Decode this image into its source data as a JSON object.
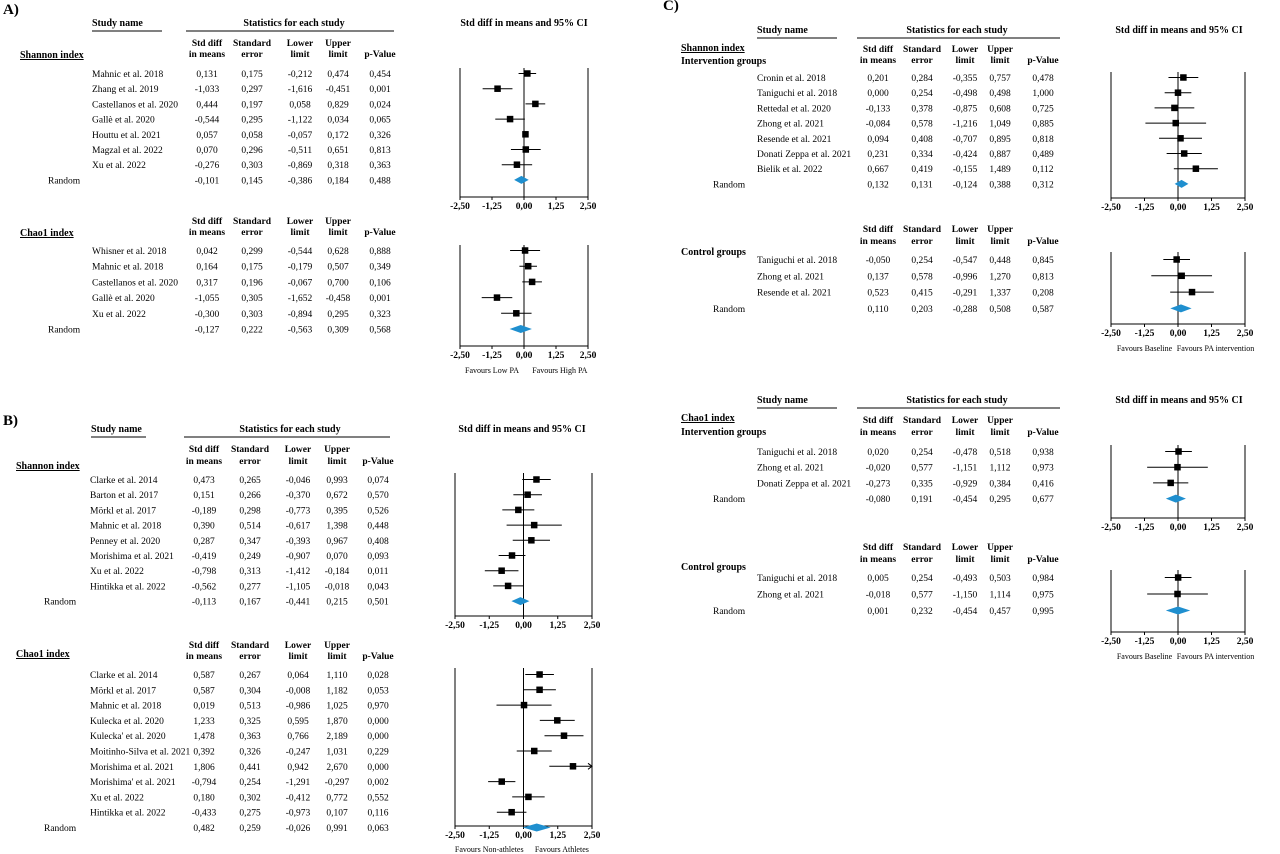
{
  "panels": [
    {
      "label": "A)",
      "headers": {
        "study": "Study name",
        "stats": "Statistics for each study",
        "ci": "Std diff in means and 95% CI",
        "cols": [
          [
            "Std diff",
            "in means"
          ],
          [
            "Standard",
            "error"
          ],
          [
            "Lower",
            "limit"
          ],
          [
            "Upper",
            "limit"
          ],
          [
            "p-Value"
          ]
        ]
      },
      "axis_ticks": [
        "-2,50",
        "-1,25",
        "0,00",
        "1,25",
        "2,50"
      ],
      "sections": [
        {
          "title": "Shannon index",
          "rows": [
            {
              "study": "Mahnic et al. 2018",
              "std": "0,131",
              "se": "0,175",
              "lower": "-0,212",
              "upper": "0,474",
              "p": "0,454"
            },
            {
              "study": "Zhang et al. 2019",
              "std": "-1,033",
              "se": "0,297",
              "lower": "-1,616",
              "upper": "-0,451",
              "p": "0,001"
            },
            {
              "study": "Castellanos et al. 2020",
              "std": "0,444",
              "se": "0,197",
              "lower": "0,058",
              "upper": "0,829",
              "p": "0,024"
            },
            {
              "study": "Gallè et al. 2020",
              "std": "-0,544",
              "se": "0,295",
              "lower": "-1,122",
              "upper": "0,034",
              "p": "0,065"
            },
            {
              "study": "Houttu et al. 2021",
              "std": "0,057",
              "se": "0,058",
              "lower": "-0,057",
              "upper": "0,172",
              "p": "0,326"
            },
            {
              "study": "Magzal et al. 2022",
              "std": "0,070",
              "se": "0,296",
              "lower": "-0,511",
              "upper": "0,651",
              "p": "0,813"
            },
            {
              "study": "Xu et al. 2022",
              "std": "-0,276",
              "se": "0,303",
              "lower": "-0,869",
              "upper": "0,318",
              "p": "0,363"
            }
          ],
          "random": {
            "study": "Random",
            "std": "-0,101",
            "se": "0,145",
            "lower": "-0,386",
            "upper": "0,184",
            "p": "0,488"
          }
        },
        {
          "title": "Chao1 index",
          "rows": [
            {
              "study": "Whisner et al. 2018",
              "std": "0,042",
              "se": "0,299",
              "lower": "-0,544",
              "upper": "0,628",
              "p": "0,888"
            },
            {
              "study": "Mahnic et al. 2018",
              "std": "0,164",
              "se": "0,175",
              "lower": "-0,179",
              "upper": "0,507",
              "p": "0,349"
            },
            {
              "study": "Castellanos et al. 2020",
              "std": "0,317",
              "se": "0,196",
              "lower": "-0,067",
              "upper": "0,700",
              "p": "0,106"
            },
            {
              "study": "Gallè et al. 2020",
              "std": "-1,055",
              "se": "0,305",
              "lower": "-1,652",
              "upper": "-0,458",
              "p": "0,001"
            },
            {
              "study": "Xu et al. 2022",
              "std": "-0,300",
              "se": "0,303",
              "lower": "-0,894",
              "upper": "0,295",
              "p": "0,323"
            }
          ],
          "random": {
            "study": "Random",
            "std": "-0,127",
            "se": "0,222",
            "lower": "-0,563",
            "upper": "0,309",
            "p": "0,568"
          },
          "favours": [
            "Favours Low PA",
            "Favours High PA"
          ]
        }
      ]
    },
    {
      "label": "B)",
      "headers": {
        "study": "Study name",
        "stats": "Statistics for each study",
        "ci": "Std diff in means and 95% CI",
        "cols": [
          [
            "Std diff",
            "in means"
          ],
          [
            "Standard",
            "error"
          ],
          [
            "Lower",
            "limit"
          ],
          [
            "Upper",
            "limit"
          ],
          [
            "p-Value"
          ]
        ]
      },
      "axis_ticks": [
        "-2,50",
        "-1,25",
        "0,00",
        "1,25",
        "2,50"
      ],
      "sections": [
        {
          "title": "Shannon index",
          "rows": [
            {
              "study": "Clarke et al. 2014",
              "std": "0,473",
              "se": "0,265",
              "lower": "-0,046",
              "upper": "0,993",
              "p": "0,074"
            },
            {
              "study": "Barton et al. 2017",
              "std": "0,151",
              "se": "0,266",
              "lower": "-0,370",
              "upper": "0,672",
              "p": "0,570"
            },
            {
              "study": "Mörkl et al. 2017",
              "std": "-0,189",
              "se": "0,298",
              "lower": "-0,773",
              "upper": "0,395",
              "p": "0,526"
            },
            {
              "study": "Mahnic et al. 2018",
              "std": "0,390",
              "se": "0,514",
              "lower": "-0,617",
              "upper": "1,398",
              "p": "0,448"
            },
            {
              "study": "Penney et al. 2020",
              "std": "0,287",
              "se": "0,347",
              "lower": "-0,393",
              "upper": "0,967",
              "p": "0,408"
            },
            {
              "study": "Morishima et al. 2021",
              "std": "-0,419",
              "se": "0,249",
              "lower": "-0,907",
              "upper": "0,070",
              "p": "0,093"
            },
            {
              "study": "Xu et al. 2022",
              "std": "-0,798",
              "se": "0,313",
              "lower": "-1,412",
              "upper": "-0,184",
              "p": "0,011"
            },
            {
              "study": "Hintikka et al. 2022",
              "std": "-0,562",
              "se": "0,277",
              "lower": "-1,105",
              "upper": "-0,018",
              "p": "0,043"
            }
          ],
          "random": {
            "study": "Random",
            "std": "-0,113",
            "se": "0,167",
            "lower": "-0,441",
            "upper": "0,215",
            "p": "0,501"
          }
        },
        {
          "title": "Chao1 index",
          "rows": [
            {
              "study": "Clarke et al. 2014",
              "std": "0,587",
              "se": "0,267",
              "lower": "0,064",
              "upper": "1,110",
              "p": "0,028"
            },
            {
              "study": "Mörkl et al. 2017",
              "std": "0,587",
              "se": "0,304",
              "lower": "-0,008",
              "upper": "1,182",
              "p": "0,053"
            },
            {
              "study": "Mahnic et al. 2018",
              "std": "0,019",
              "se": "0,513",
              "lower": "-0,986",
              "upper": "1,025",
              "p": "0,970"
            },
            {
              "study": "Kulecka et al. 2020",
              "std": "1,233",
              "se": "0,325",
              "lower": "0,595",
              "upper": "1,870",
              "p": "0,000"
            },
            {
              "study": "Kulecka' et al. 2020",
              "std": "1,478",
              "se": "0,363",
              "lower": "0,766",
              "upper": "2,189",
              "p": "0,000"
            },
            {
              "study": "Moitinho-Silva et al. 2021",
              "std": "0,392",
              "se": "0,326",
              "lower": "-0,247",
              "upper": "1,031",
              "p": "0,229"
            },
            {
              "study": "Morishima et al. 2021",
              "std": "1,806",
              "se": "0,441",
              "lower": "0,942",
              "upper": "2,670",
              "p": "0,000"
            },
            {
              "study": "Morishima' et al. 2021",
              "std": "-0,794",
              "se": "0,254",
              "lower": "-1,291",
              "upper": "-0,297",
              "p": "0,002"
            },
            {
              "study": "Xu et al. 2022",
              "std": "0,180",
              "se": "0,302",
              "lower": "-0,412",
              "upper": "0,772",
              "p": "0,552"
            },
            {
              "study": "Hintikka et al. 2022",
              "std": "-0,433",
              "se": "0,275",
              "lower": "-0,973",
              "upper": "0,107",
              "p": "0,116"
            }
          ],
          "random": {
            "study": "Random",
            "std": "0,482",
            "se": "0,259",
            "lower": "-0,026",
            "upper": "0,991",
            "p": "0,063"
          },
          "favours": [
            "Favours Non-athletes",
            "Favours Athletes"
          ]
        }
      ]
    },
    {
      "label": "C)",
      "headers": {
        "study": "Study name",
        "stats": "Statistics for each study",
        "ci": "Std diff in means and 95% CI",
        "cols": [
          [
            "Std diff",
            "in means"
          ],
          [
            "Standard",
            "error"
          ],
          [
            "Lower",
            "limit"
          ],
          [
            "Upper",
            "limit"
          ],
          [
            "p-Value"
          ]
        ]
      },
      "axis_ticks": [
        "-2,50",
        "-1,25",
        "0,00",
        "1,25",
        "2,50"
      ],
      "sections": [
        {
          "title": "Shannon index",
          "subtitle": "Intervention groups",
          "rows": [
            {
              "study": "Cronin et al. 2018",
              "std": "0,201",
              "se": "0,284",
              "lower": "-0,355",
              "upper": "0,757",
              "p": "0,478"
            },
            {
              "study": "Taniguchi et al. 2018",
              "std": "0,000",
              "se": "0,254",
              "lower": "-0,498",
              "upper": "0,498",
              "p": "1,000"
            },
            {
              "study": "Rettedal et al. 2020",
              "std": "-0,133",
              "se": "0,378",
              "lower": "-0,875",
              "upper": "0,608",
              "p": "0,725"
            },
            {
              "study": "Zhong et al. 2021",
              "std": "-0,084",
              "se": "0,578",
              "lower": "-1,216",
              "upper": "1,049",
              "p": "0,885"
            },
            {
              "study": "Resende et al. 2021",
              "std": "0,094",
              "se": "0,408",
              "lower": "-0,707",
              "upper": "0,895",
              "p": "0,818"
            },
            {
              "study": "Donati Zeppa et al. 2021",
              "std": "0,231",
              "se": "0,334",
              "lower": "-0,424",
              "upper": "0,887",
              "p": "0,489"
            },
            {
              "study": "Bielik et al. 2022",
              "std": "0,667",
              "se": "0,419",
              "lower": "-0,155",
              "upper": "1,489",
              "p": "0,112"
            }
          ],
          "random": {
            "study": "Random",
            "std": "0,132",
            "se": "0,131",
            "lower": "-0,124",
            "upper": "0,388",
            "p": "0,312"
          }
        },
        {
          "title": "",
          "subtitle": "Control groups",
          "rows": [
            {
              "study": "Taniguchi et al. 2018",
              "std": "-0,050",
              "se": "0,254",
              "lower": "-0,547",
              "upper": "0,448",
              "p": "0,845"
            },
            {
              "study": "Zhong et al. 2021",
              "std": "0,137",
              "se": "0,578",
              "lower": "-0,996",
              "upper": "1,270",
              "p": "0,813"
            },
            {
              "study": "Resende et al. 2021",
              "std": "0,523",
              "se": "0,415",
              "lower": "-0,291",
              "upper": "1,337",
              "p": "0,208"
            }
          ],
          "random": {
            "study": "Random",
            "std": "0,110",
            "se": "0,203",
            "lower": "-0,288",
            "upper": "0,508",
            "p": "0,587"
          },
          "favours": [
            "Favours Baseline",
            "Favours PA intervention"
          ]
        },
        {
          "title": "Chao1 index",
          "subtitle": "Intervention groups",
          "rows": [
            {
              "study": "Taniguchi et al. 2018",
              "std": "0,020",
              "se": "0,254",
              "lower": "-0,478",
              "upper": "0,518",
              "p": "0,938"
            },
            {
              "study": "Zhong et al. 2021",
              "std": "-0,020",
              "se": "0,577",
              "lower": "-1,151",
              "upper": "1,112",
              "p": "0,973"
            },
            {
              "study": "Donati Zeppa et al. 2021",
              "std": "-0,273",
              "se": "0,335",
              "lower": "-0,929",
              "upper": "0,384",
              "p": "0,416"
            }
          ],
          "random": {
            "study": "Random",
            "std": "-0,080",
            "se": "0,191",
            "lower": "-0,454",
            "upper": "0,295",
            "p": "0,677"
          }
        },
        {
          "title": "",
          "subtitle": "Control groups",
          "rows": [
            {
              "study": "Taniguchi et al. 2018",
              "std": "0,005",
              "se": "0,254",
              "lower": "-0,493",
              "upper": "0,503",
              "p": "0,984"
            },
            {
              "study": "Zhong et al. 2021",
              "std": "-0,018",
              "se": "0,577",
              "lower": "-1,150",
              "upper": "1,114",
              "p": "0,975"
            }
          ],
          "random": {
            "study": "Random",
            "std": "0,001",
            "se": "0,232",
            "lower": "-0,454",
            "upper": "0,457",
            "p": "0,995"
          },
          "favours": [
            "Favours Baseline",
            "Favours PA intervention"
          ]
        }
      ]
    }
  ],
  "chart_data": {
    "type": "forest",
    "x_axis": {
      "range": [
        -2.5,
        2.5
      ],
      "ticks": [
        -2.5,
        -1.25,
        0,
        1.25,
        2.5
      ],
      "label": "Std diff in means and 95% CI"
    },
    "colors": {
      "summary_diamond": "#1f8fcf",
      "points": "#000000"
    }
  }
}
